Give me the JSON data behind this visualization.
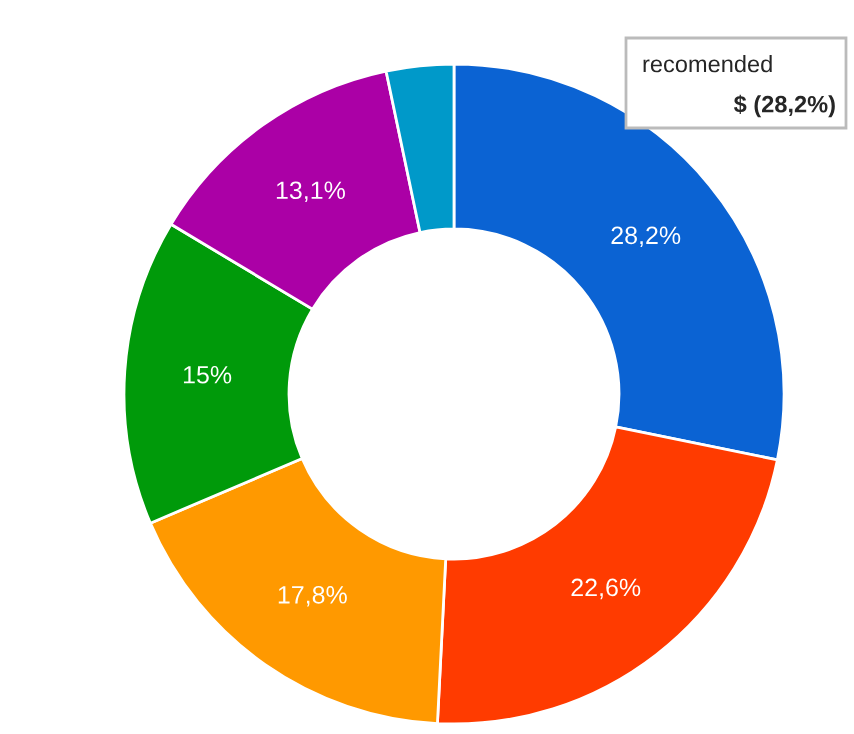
{
  "chart_data": {
    "type": "donut",
    "categories": [
      "recomended",
      null,
      null,
      null,
      null,
      null
    ],
    "values": [
      28.2,
      22.6,
      17.8,
      15,
      13.1,
      3.3
    ],
    "value_labels": [
      "28,2%",
      "22,6%",
      "17,8%",
      "15%",
      "13,1%",
      null
    ],
    "colors": [
      "#0b63d3",
      "#ff3b00",
      "#ff9900",
      "#009a0a",
      "#ab00a6",
      "#0099c9"
    ],
    "annotations": [
      "$ (28,2%)"
    ],
    "legend": false
  }
}
